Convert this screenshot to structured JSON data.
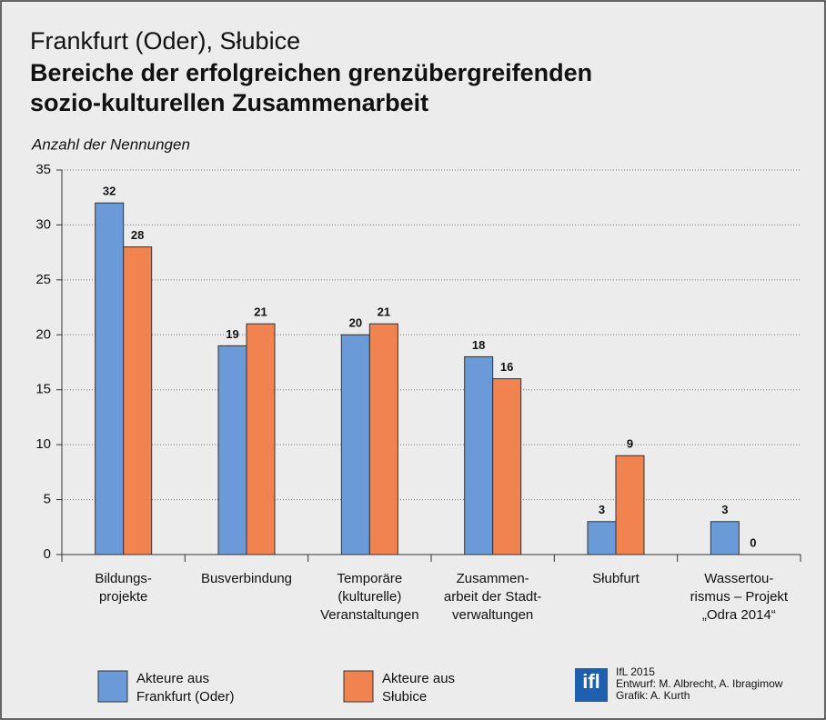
{
  "chart_data": {
    "type": "bar",
    "pretitle": "Frankfurt (Oder), Słubice",
    "title": [
      "Bereiche der erfolgreichen grenzübergreifenden",
      "sozio-kulturellen Zusammenarbeit"
    ],
    "ylabel": "Anzahl der Nennungen",
    "categories": [
      [
        "Bildungs-",
        "projekte"
      ],
      [
        "Busverbindung"
      ],
      [
        "Temporäre",
        "(kulturelle)",
        "Veranstaltungen"
      ],
      [
        "Zusammen-",
        "arbeit der Stadt-",
        "verwaltungen"
      ],
      [
        "Słubfurt"
      ],
      [
        "Wassertou-",
        "rismus – Projekt",
        "„Odra 2014“"
      ]
    ],
    "series": [
      {
        "name": [
          "Akteure aus",
          "Frankfurt (Oder)"
        ],
        "color": "#6a9bd8",
        "values": [
          32,
          19,
          20,
          18,
          3,
          3
        ]
      },
      {
        "name": [
          "Akteure aus",
          "Słubice"
        ],
        "color": "#f0834f",
        "values": [
          28,
          21,
          21,
          16,
          9,
          0
        ]
      }
    ],
    "ylim": [
      0,
      35
    ],
    "yticks": [
      0,
      5,
      10,
      15,
      20,
      25,
      30,
      35
    ],
    "grid": true,
    "logo": "ifl",
    "credits": [
      "IfL 2015",
      "Entwurf: M. Albrecht, A. Ibragimow",
      "Grafik: A. Kurth"
    ]
  }
}
